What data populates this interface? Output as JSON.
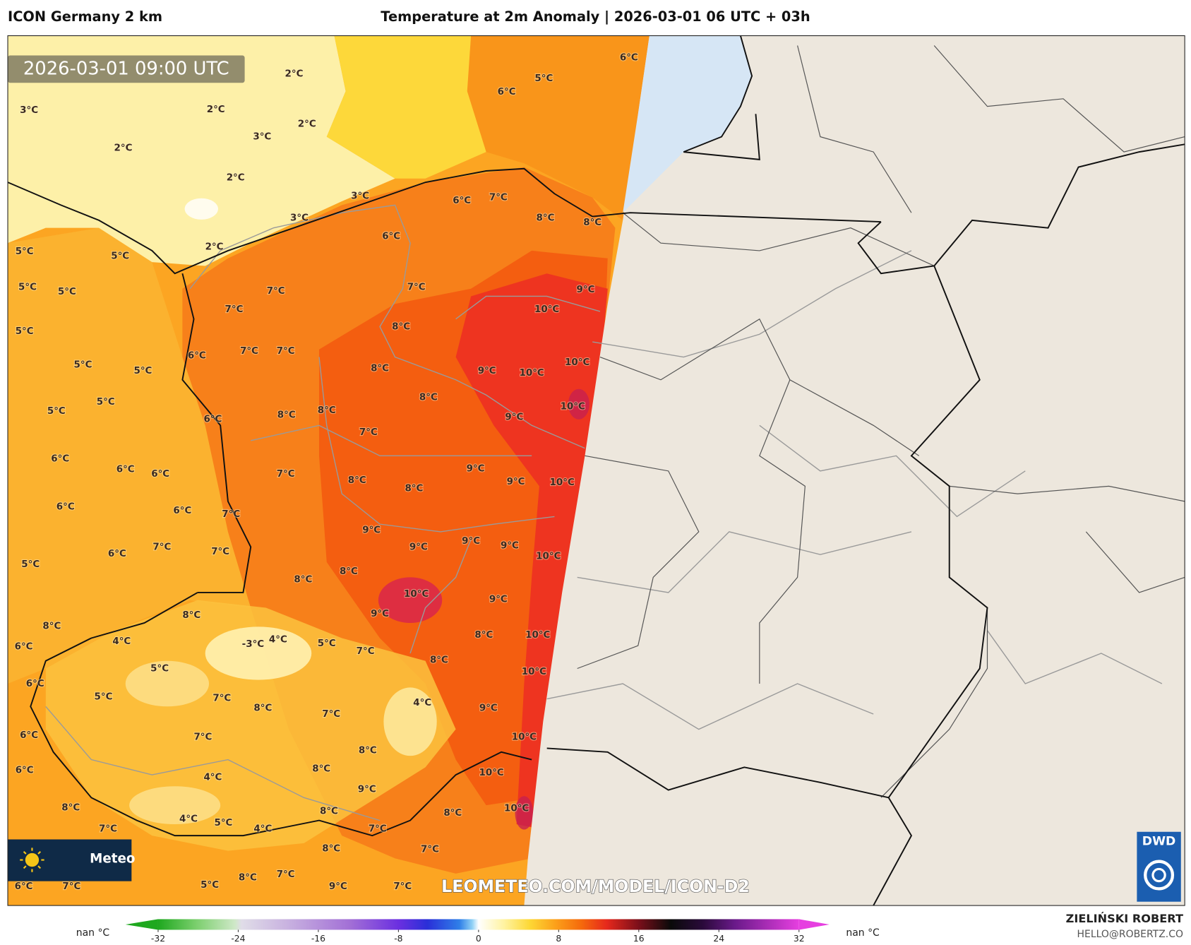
{
  "header": {
    "model": "ICON Germany 2 km",
    "title": "Temperature at 2m Anomaly | 2026-03-01 06 UTC + 03h"
  },
  "map": {
    "timestamp": "2026-03-01 09:00 UTC",
    "watermark": "LEOMETEO.COM/MODEL/ICON-D2",
    "logo_text": "Meteo",
    "dwd": "DWD",
    "contour_labels": [
      "6°C",
      "5°C",
      "6°C",
      "2°C",
      "2°C",
      "2°C",
      "3°C",
      "3°C",
      "2°C",
      "2°C",
      "3°C",
      "3°C",
      "2°C",
      "6°C",
      "7°C",
      "8°C",
      "8°C",
      "6°C",
      "5°C",
      "5°C",
      "5°C",
      "5°C",
      "7°C",
      "7°C",
      "9°C",
      "7°C",
      "10°C",
      "5°C",
      "8°C",
      "7°C",
      "7°C",
      "6°C",
      "10°C",
      "5°C",
      "5°C",
      "8°C",
      "9°C",
      "10°C",
      "5°C",
      "8°C",
      "10°C",
      "5°C",
      "8°C",
      "8°C",
      "6°C",
      "9°C",
      "7°C",
      "6°C",
      "6°C",
      "6°C",
      "7°C",
      "9°C",
      "8°C",
      "9°C",
      "10°C",
      "8°C",
      "6°C",
      "6°C",
      "7°C",
      "9°C",
      "7°C",
      "6°C",
      "9°C",
      "9°C",
      "9°C",
      "7°C",
      "10°C",
      "5°C",
      "8°C",
      "8°C",
      "10°C",
      "9°C",
      "9°C",
      "8°C",
      "8°C",
      "10°C",
      "8°C",
      "4°C",
      "4°C",
      "-3°C",
      "5°C",
      "6°C",
      "7°C",
      "8°C",
      "10°C",
      "5°C",
      "6°C",
      "5°C",
      "7°C",
      "8°C",
      "9°C",
      "4°C",
      "7°C",
      "6°C",
      "7°C",
      "10°C",
      "8°C",
      "6°C",
      "4°C",
      "8°C",
      "10°C",
      "9°C",
      "8°C",
      "8°C",
      "8°C",
      "10°C",
      "4°C",
      "5°C",
      "4°C",
      "7°C",
      "7°C",
      "8°C",
      "7°C",
      "8°C",
      "7°C",
      "6°C",
      "7°C",
      "5°C",
      "9°C",
      "7°C"
    ]
  },
  "colorbar": {
    "range": [
      -32,
      32
    ],
    "ticks": [
      -32,
      -24,
      -16,
      -8,
      0,
      8,
      16,
      24,
      32
    ],
    "left_label": "nan °C",
    "right_label": "nan °C"
  },
  "credits": {
    "author": "ZIELIŃSKI ROBERT",
    "email": "HELLO@ROBERTZ.CO"
  }
}
